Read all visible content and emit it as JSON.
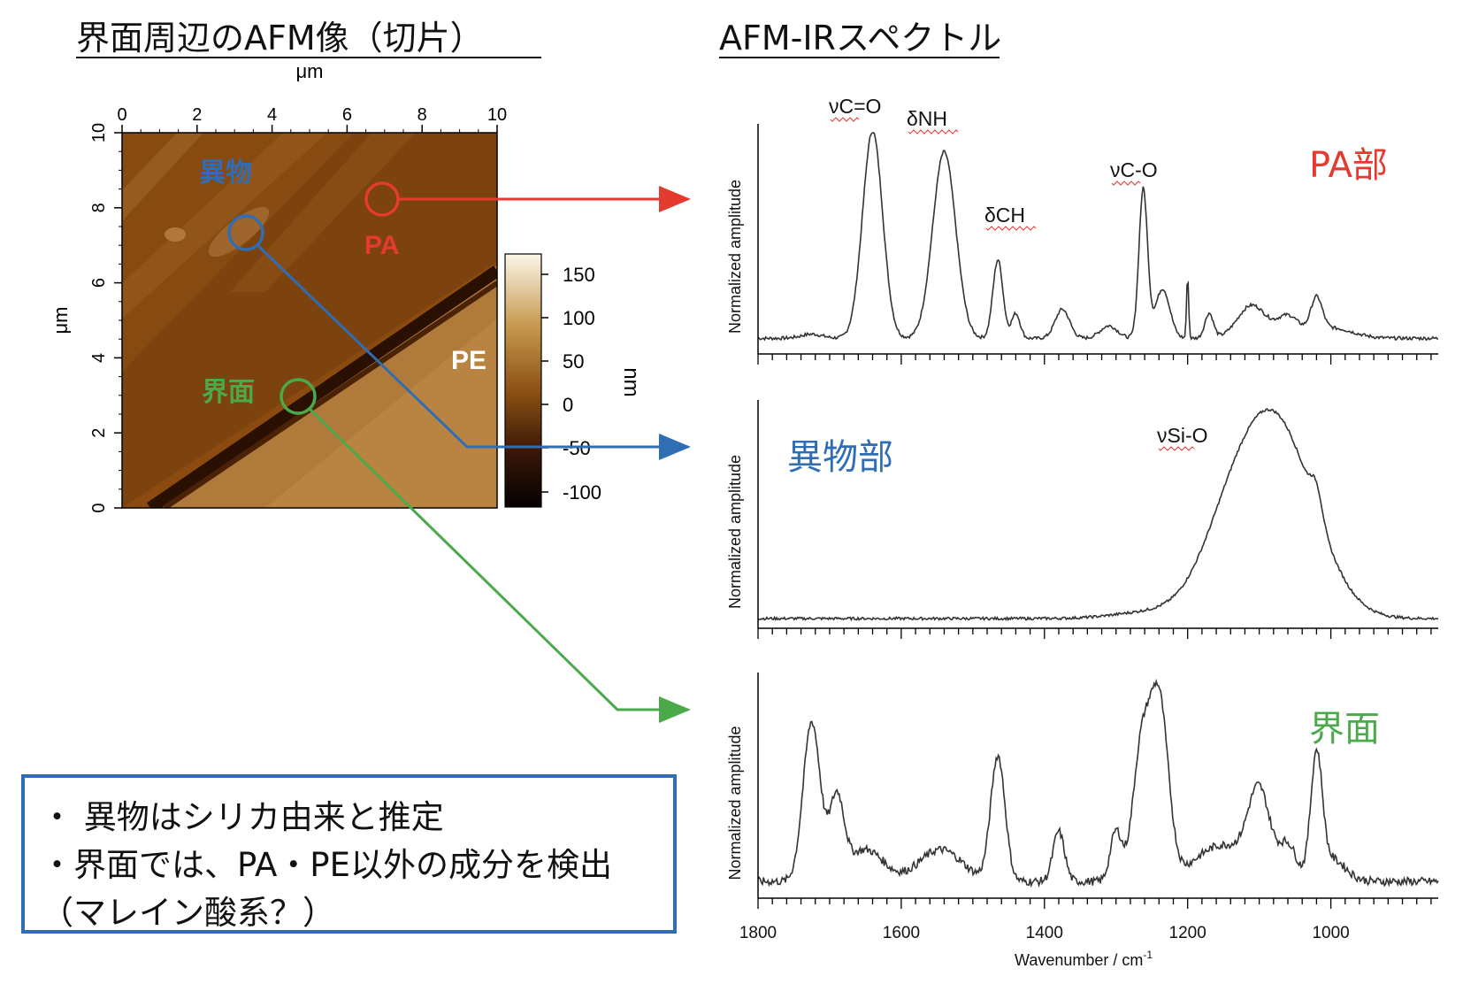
{
  "titles": {
    "afm_image": "界面周辺のAFM像（切片）",
    "spectra": "AFM-IRスペクトル"
  },
  "afm_image": {
    "top_axis_label": "μm",
    "left_axis_label": "μm",
    "ticks": [
      "0",
      "2",
      "4",
      "6",
      "8",
      "10"
    ],
    "colorbar": {
      "unit": "nm",
      "ticks": [
        "150",
        "100",
        "50",
        "0",
        "-50",
        "-100"
      ]
    },
    "region_labels": {
      "foreign": "異物",
      "pa": "PA",
      "pe": "PE",
      "interface": "界面"
    },
    "colors": {
      "pa": "#e53a2f",
      "foreign": "#2f6db5",
      "interface": "#4aaa4a"
    }
  },
  "chart_data": [
    {
      "type": "line",
      "panel": "PA部",
      "ylabel": "Normalized amplitude",
      "xlim": [
        1800,
        850
      ],
      "annotations": [
        "νC=O",
        "δNH",
        "δCH",
        "νC-O"
      ],
      "peaks_cm-1": [
        1640,
        1540,
        1465,
        1260
      ]
    },
    {
      "type": "line",
      "panel": "異物部",
      "ylabel": "Normalized amplitude",
      "xlim": [
        1800,
        850
      ],
      "annotations": [
        "νSi-O"
      ],
      "peaks_cm-1": [
        1080
      ]
    },
    {
      "type": "line",
      "panel": "界面",
      "ylabel": "Normalized amplitude",
      "xlabel": "Wavenumber / cm",
      "xlabel_superscript": "-1",
      "xlim": [
        1800,
        850
      ],
      "xticks": [
        "1800",
        "1600",
        "1400",
        "1200",
        "1000"
      ],
      "peaks_cm-1": [
        1725,
        1465,
        1245,
        1020
      ]
    }
  ],
  "spectra_labels": {
    "p1": "PA部",
    "p2": "異物部",
    "p3": "界面",
    "ylabel": "Normalized amplitude",
    "ann_co": "νC=O",
    "ann_nh": "δNH",
    "ann_ch": "δCH",
    "ann_c_o": "νC-O",
    "ann_sio": "νSi-O"
  },
  "notes": {
    "line1": "・ 異物はシリカ由来と推定",
    "line2": "・界面では、PA・PE以外の成分を検出",
    "line3": "（マレイン酸系？）"
  }
}
